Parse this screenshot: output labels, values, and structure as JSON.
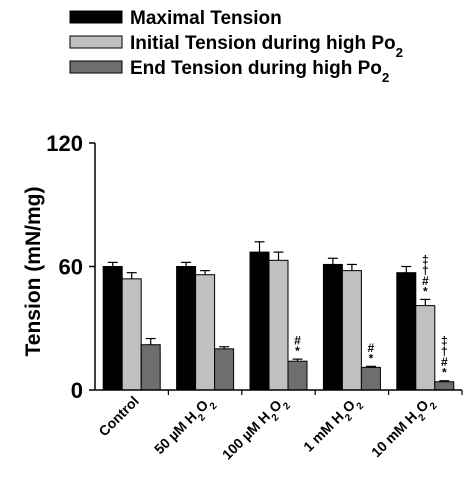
{
  "chart_data": {
    "type": "bar",
    "ylabel": "Tension (mN/mg)",
    "ylim": [
      0,
      120
    ],
    "yticks": [
      "0",
      "60",
      "120"
    ],
    "legend_position": "top",
    "categories": [
      {
        "pre": "Control",
        "sub": "",
        "post": ""
      },
      {
        "pre": "50 µM H",
        "sub": "2",
        "post": "O",
        "sub2": "2"
      },
      {
        "pre": "100 µM H",
        "sub": "2",
        "post": "O",
        "sub2": "2"
      },
      {
        "pre": "1 mM H",
        "sub": "2",
        "post": "O",
        "sub2": "2"
      },
      {
        "pre": "10 mM H",
        "sub": "2",
        "post": "O",
        "sub2": "2"
      }
    ],
    "series": [
      {
        "name": "Maximal Tension",
        "name_sub": "",
        "color": "#000000",
        "values": [
          60,
          60,
          67,
          61,
          57
        ],
        "errors": [
          2,
          2,
          5,
          3,
          3
        ],
        "annotations": [
          [],
          [],
          [],
          [],
          []
        ]
      },
      {
        "name": "Initial Tension during high Po",
        "name_sub": "2",
        "color": "#c0c0c0",
        "values": [
          54,
          56,
          63,
          58,
          41
        ],
        "errors": [
          3,
          2,
          4,
          3,
          3
        ],
        "annotations": [
          [],
          [],
          [],
          [],
          [
            "‡",
            "†",
            "#",
            "*"
          ]
        ]
      },
      {
        "name": "End Tension during high Po",
        "name_sub": "2",
        "color": "#6e6e6e",
        "values": [
          22,
          20,
          14,
          11,
          4
        ],
        "errors": [
          3,
          1,
          1,
          0.5,
          0.5
        ],
        "annotations": [
          [],
          [],
          [
            "#",
            "*"
          ],
          [
            "#",
            "*"
          ],
          [
            "‡",
            "†",
            "#",
            "*"
          ]
        ]
      }
    ]
  }
}
